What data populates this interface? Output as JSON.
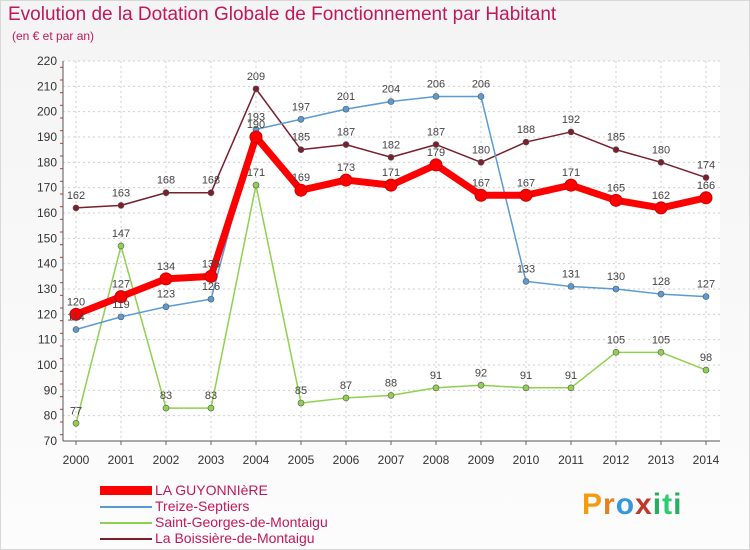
{
  "title": "Evolution de la Dotation Globale de Fonctionnement par Habitant",
  "subtitle": "(en € et par an)",
  "chart_data": {
    "type": "line",
    "title": "Evolution de la Dotation Globale de Fonctionnement par Habitant",
    "subtitle": "(en € et par an)",
    "xlabel": "",
    "ylabel": "",
    "ylim": [
      70,
      220
    ],
    "ytick_step": 10,
    "x": [
      "2000",
      "2001",
      "2002",
      "2003",
      "2004",
      "2005",
      "2006",
      "2007",
      "2008",
      "2009",
      "2010",
      "2011",
      "2012",
      "2013",
      "2014"
    ],
    "y_ticks": [
      "70",
      "80",
      "90",
      "100",
      "110",
      "120",
      "130",
      "140",
      "150",
      "160",
      "170",
      "180",
      "190",
      "200",
      "210",
      "220"
    ],
    "grid": true,
    "series": [
      {
        "name": "LA GUYONNIèRE",
        "color": "#ff0000",
        "values": [
          120,
          127,
          134,
          135,
          190,
          169,
          173,
          171,
          179,
          167,
          167,
          171,
          165,
          162,
          166
        ]
      },
      {
        "name": "Treize-Septiers",
        "color": "#5b9bd5",
        "values": [
          114,
          119,
          123,
          126,
          193,
          197,
          201,
          204,
          206,
          206,
          133,
          131,
          130,
          128,
          127
        ]
      },
      {
        "name": "Saint-Georges-de-Montaigu",
        "color": "#8fd14f",
        "values": [
          77,
          147,
          83,
          83,
          171,
          85,
          87,
          88,
          91,
          92,
          91,
          91,
          105,
          105,
          98
        ]
      },
      {
        "name": "La Boissière-de-Montaigu",
        "color": "#7a1f2b",
        "values": [
          162,
          163,
          168,
          168,
          209,
          185,
          187,
          182,
          187,
          180,
          188,
          192,
          185,
          180,
          174
        ]
      }
    ]
  },
  "legend": [
    {
      "label": "LA GUYONNIèRE",
      "color": "#ff0000"
    },
    {
      "label": "Treize-Septiers",
      "color": "#5b9bd5"
    },
    {
      "label": "Saint-Georges-de-Montaigu",
      "color": "#8fd14f"
    },
    {
      "label": "La Boissière-de-Montaigu",
      "color": "#7a1f2b"
    }
  ],
  "logo": {
    "letters": [
      {
        "ch": "P",
        "color": "#f39c12"
      },
      {
        "ch": "r",
        "color": "#e67e22"
      },
      {
        "ch": "o",
        "color": "#3498db"
      },
      {
        "ch": "x",
        "color": "#c0392b"
      },
      {
        "ch": "i",
        "color": "#27ae60"
      },
      {
        "ch": "t",
        "color": "#2ecc71"
      },
      {
        "ch": "i",
        "color": "#27ae60"
      }
    ]
  }
}
